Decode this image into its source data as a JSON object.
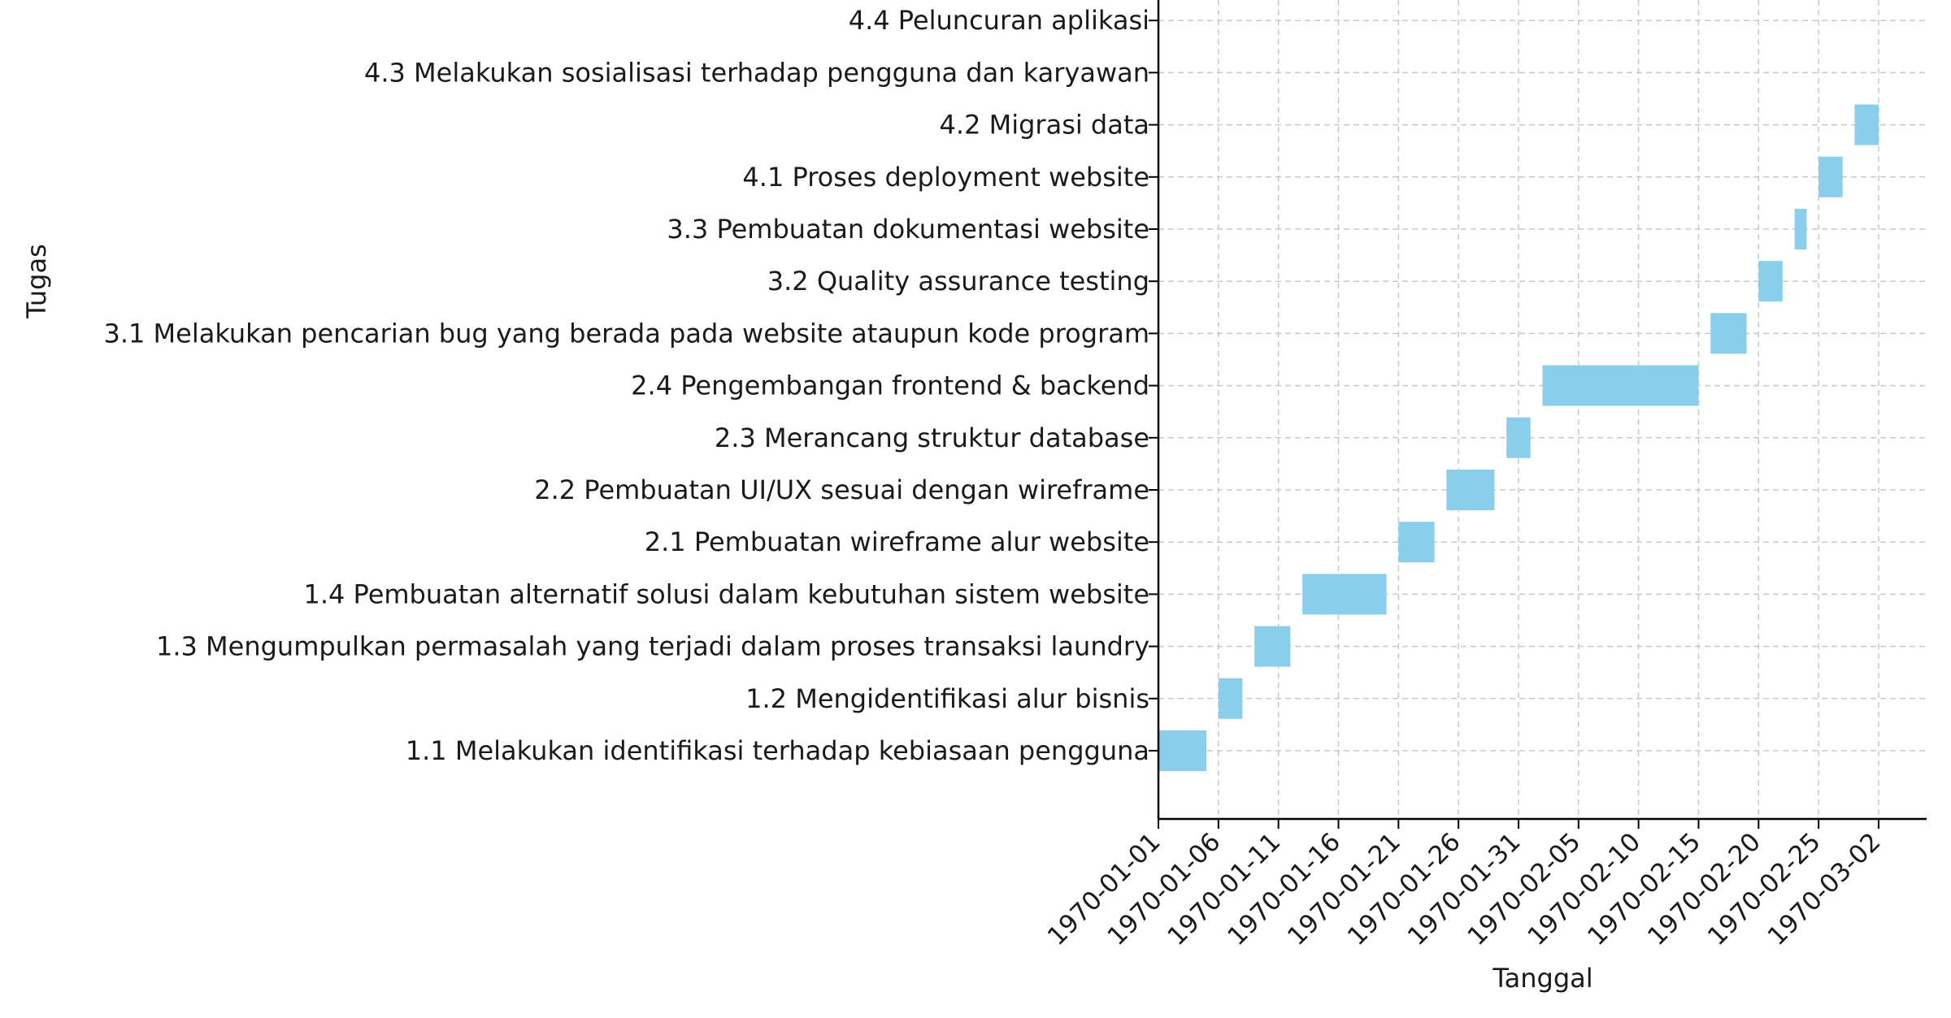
{
  "chart_data": {
    "type": "gantt",
    "title": "",
    "xlabel": "Tanggal",
    "ylabel": "Tugas",
    "xlim": [
      "1970-01-01",
      "1970-03-06"
    ],
    "grid": true,
    "bar_color": "#89ceea",
    "x_ticks": [
      "1970-01-01",
      "1970-01-06",
      "1970-01-11",
      "1970-01-16",
      "1970-01-21",
      "1970-01-26",
      "1970-01-31",
      "1970-02-05",
      "1970-02-10",
      "1970-02-15",
      "1970-02-20",
      "1970-02-25",
      "1970-03-02"
    ],
    "tasks": [
      {
        "name": "1.1 Melakukan identifikasi terhadap kebiasaan pengguna",
        "start": "1970-01-01",
        "end": "1970-01-05"
      },
      {
        "name": "1.2 Mengidentifikasi alur bisnis",
        "start": "1970-01-06",
        "end": "1970-01-08"
      },
      {
        "name": "1.3 Mengumpulkan permasalah yang terjadi dalam proses transaksi laundry",
        "start": "1970-01-09",
        "end": "1970-01-12"
      },
      {
        "name": "1.4 Pembuatan alternatif solusi dalam kebutuhan sistem website",
        "start": "1970-01-13",
        "end": "1970-01-20"
      },
      {
        "name": "2.1 Pembuatan wireframe alur website",
        "start": "1970-01-21",
        "end": "1970-01-24"
      },
      {
        "name": "2.2 Pembuatan UI/UX sesuai dengan wireframe",
        "start": "1970-01-25",
        "end": "1970-01-29"
      },
      {
        "name": "2.3 Merancang struktur database",
        "start": "1970-01-30",
        "end": "1970-02-01"
      },
      {
        "name": "2.4 Pengembangan frontend & backend",
        "start": "1970-02-02",
        "end": "1970-02-15"
      },
      {
        "name": "3.1 Melakukan pencarian bug yang berada pada website ataupun kode program",
        "start": "1970-02-16",
        "end": "1970-02-19"
      },
      {
        "name": "3.2 Quality assurance testing",
        "start": "1970-02-20",
        "end": "1970-02-22"
      },
      {
        "name": "3.3 Pembuatan dokumentasi website",
        "start": "1970-02-23",
        "end": "1970-02-24"
      },
      {
        "name": "4.1 Proses deployment website",
        "start": "1970-02-25",
        "end": "1970-02-27"
      },
      {
        "name": "4.2 Migrasi data",
        "start": "1970-02-28",
        "end": "1970-03-02"
      },
      {
        "name": "4.3 Melakukan sosialisasi terhadap pengguna dan karyawan",
        "start": null,
        "end": null
      },
      {
        "name": "4.4 Peluncuran aplikasi",
        "start": null,
        "end": null
      }
    ]
  }
}
